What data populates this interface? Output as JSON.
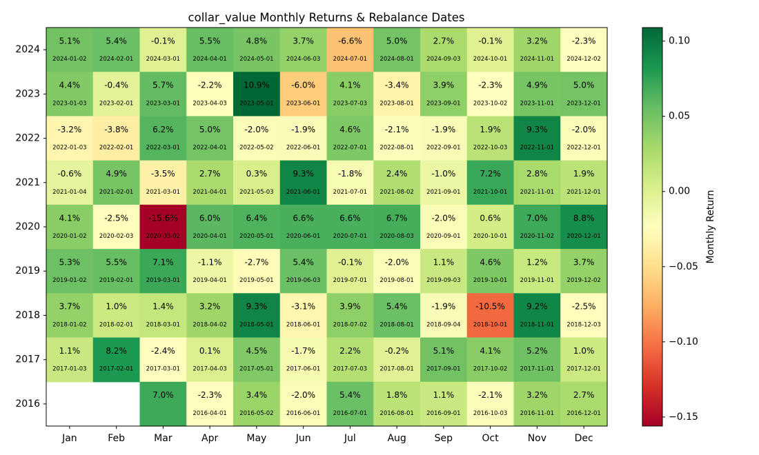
{
  "chart_data": {
    "type": "heatmap",
    "title": "collar_value Monthly Returns & Rebalance Dates",
    "months": [
      "Jan",
      "Feb",
      "Mar",
      "Apr",
      "May",
      "Jun",
      "Jul",
      "Aug",
      "Sep",
      "Oct",
      "Nov",
      "Dec"
    ],
    "years": [
      "2024",
      "2023",
      "2022",
      "2021",
      "2020",
      "2019",
      "2018",
      "2017",
      "2016"
    ],
    "values": [
      [
        "5.1%",
        "5.4%",
        "-0.1%",
        "5.5%",
        "4.8%",
        "3.7%",
        "-6.6%",
        "5.0%",
        "2.7%",
        "-0.1%",
        "3.2%",
        "-2.3%"
      ],
      [
        "4.4%",
        "-0.4%",
        "5.7%",
        "-2.2%",
        "10.9%",
        "-6.0%",
        "4.1%",
        "-3.4%",
        "3.9%",
        "-2.3%",
        "4.9%",
        "5.0%"
      ],
      [
        "-3.2%",
        "-3.8%",
        "6.2%",
        "5.0%",
        "-2.0%",
        "-1.9%",
        "4.6%",
        "-2.1%",
        "-1.9%",
        "1.9%",
        "9.3%",
        "-2.0%"
      ],
      [
        "-0.6%",
        "4.9%",
        "-3.5%",
        "2.7%",
        "0.3%",
        "9.3%",
        "-1.8%",
        "2.4%",
        "-1.0%",
        "7.2%",
        "2.8%",
        "1.9%"
      ],
      [
        "4.1%",
        "-2.5%",
        "-15.6%",
        "6.0%",
        "6.4%",
        "6.6%",
        "6.6%",
        "6.7%",
        "-2.0%",
        "0.6%",
        "7.0%",
        "8.8%"
      ],
      [
        "5.3%",
        "5.5%",
        "7.1%",
        "-1.1%",
        "-2.7%",
        "5.4%",
        "-0.1%",
        "-2.0%",
        "1.1%",
        "4.6%",
        "1.2%",
        "3.7%"
      ],
      [
        "3.7%",
        "1.0%",
        "1.4%",
        "3.2%",
        "9.3%",
        "-3.1%",
        "3.9%",
        "5.4%",
        "-1.9%",
        "-10.5%",
        "9.2%",
        "-2.5%"
      ],
      [
        "1.1%",
        "8.2%",
        "-2.4%",
        "0.1%",
        "4.5%",
        "-1.7%",
        "2.2%",
        "-0.2%",
        "5.1%",
        "4.1%",
        "5.2%",
        "1.0%"
      ],
      [
        null,
        null,
        "7.0%",
        "-2.3%",
        "3.4%",
        "-2.0%",
        "5.4%",
        "1.8%",
        "1.1%",
        "-2.1%",
        "3.2%",
        "2.7%"
      ]
    ],
    "rebalance_dates": [
      [
        "2024-01-02",
        "2024-02-01",
        "2024-03-01",
        "2024-04-01",
        "2024-05-01",
        "2024-06-03",
        "2024-07-01",
        "2024-08-01",
        "2024-09-03",
        "2024-10-01",
        "2024-11-01",
        "2024-12-02"
      ],
      [
        "2023-01-03",
        "2023-02-01",
        "2023-03-01",
        "2023-04-03",
        "2023-05-01",
        "2023-06-01",
        "2023-07-03",
        "2023-08-01",
        "2023-09-01",
        "2023-10-02",
        "2023-11-01",
        "2023-12-01"
      ],
      [
        "2022-01-03",
        "2022-02-01",
        "2022-03-01",
        "2022-04-01",
        "2022-05-02",
        "2022-06-01",
        "2022-07-01",
        "2022-08-01",
        "2022-09-01",
        "2022-10-03",
        "2022-11-01",
        "2022-12-01"
      ],
      [
        "2021-01-04",
        "2021-02-01",
        "2021-03-01",
        "2021-04-01",
        "2021-05-03",
        "2021-06-01",
        "2021-07-01",
        "2021-08-02",
        "2021-09-01",
        "2021-10-01",
        "2021-11-01",
        "2021-12-01"
      ],
      [
        "2020-01-02",
        "2020-02-03",
        "2020-03-02",
        "2020-04-01",
        "2020-05-01",
        "2020-06-01",
        "2020-07-01",
        "2020-08-03",
        "2020-09-01",
        "2020-10-01",
        "2020-11-02",
        "2020-12-01"
      ],
      [
        "2019-01-02",
        "2019-02-01",
        "2019-03-01",
        "2019-04-01",
        "2019-05-01",
        "2019-06-03",
        "2019-07-01",
        "2019-08-01",
        "2019-09-03",
        "2019-10-01",
        "2019-11-01",
        "2019-12-02"
      ],
      [
        "2018-01-02",
        "2018-02-01",
        "2018-03-01",
        "2018-04-02",
        "2018-05-01",
        "2018-06-01",
        "2018-07-02",
        "2018-08-01",
        "2018-09-04",
        "2018-10-01",
        "2018-11-01",
        "2018-12-03"
      ],
      [
        "2017-01-03",
        "2017-02-01",
        "2017-03-01",
        "2017-04-03",
        "2017-05-01",
        "2017-06-01",
        "2017-07-03",
        "2017-08-01",
        "2017-09-01",
        "2017-10-02",
        "2017-11-01",
        "2017-12-01"
      ],
      [
        null,
        null,
        null,
        "2016-04-01",
        "2016-05-02",
        "2016-06-01",
        "2016-07-01",
        "2016-08-01",
        "2016-09-01",
        "2016-10-03",
        "2016-11-01",
        "2016-12-01"
      ]
    ],
    "colorbar": {
      "label": "Monthly Return",
      "range": [
        -0.156,
        0.109
      ],
      "ticks": [
        "0.10",
        "0.05",
        "0.00",
        "−0.05",
        "−0.10",
        "−0.15"
      ],
      "tick_values": [
        0.1,
        0.05,
        0.0,
        -0.05,
        -0.1,
        -0.15
      ],
      "colormap": "RdYlGn"
    },
    "grid": false
  }
}
